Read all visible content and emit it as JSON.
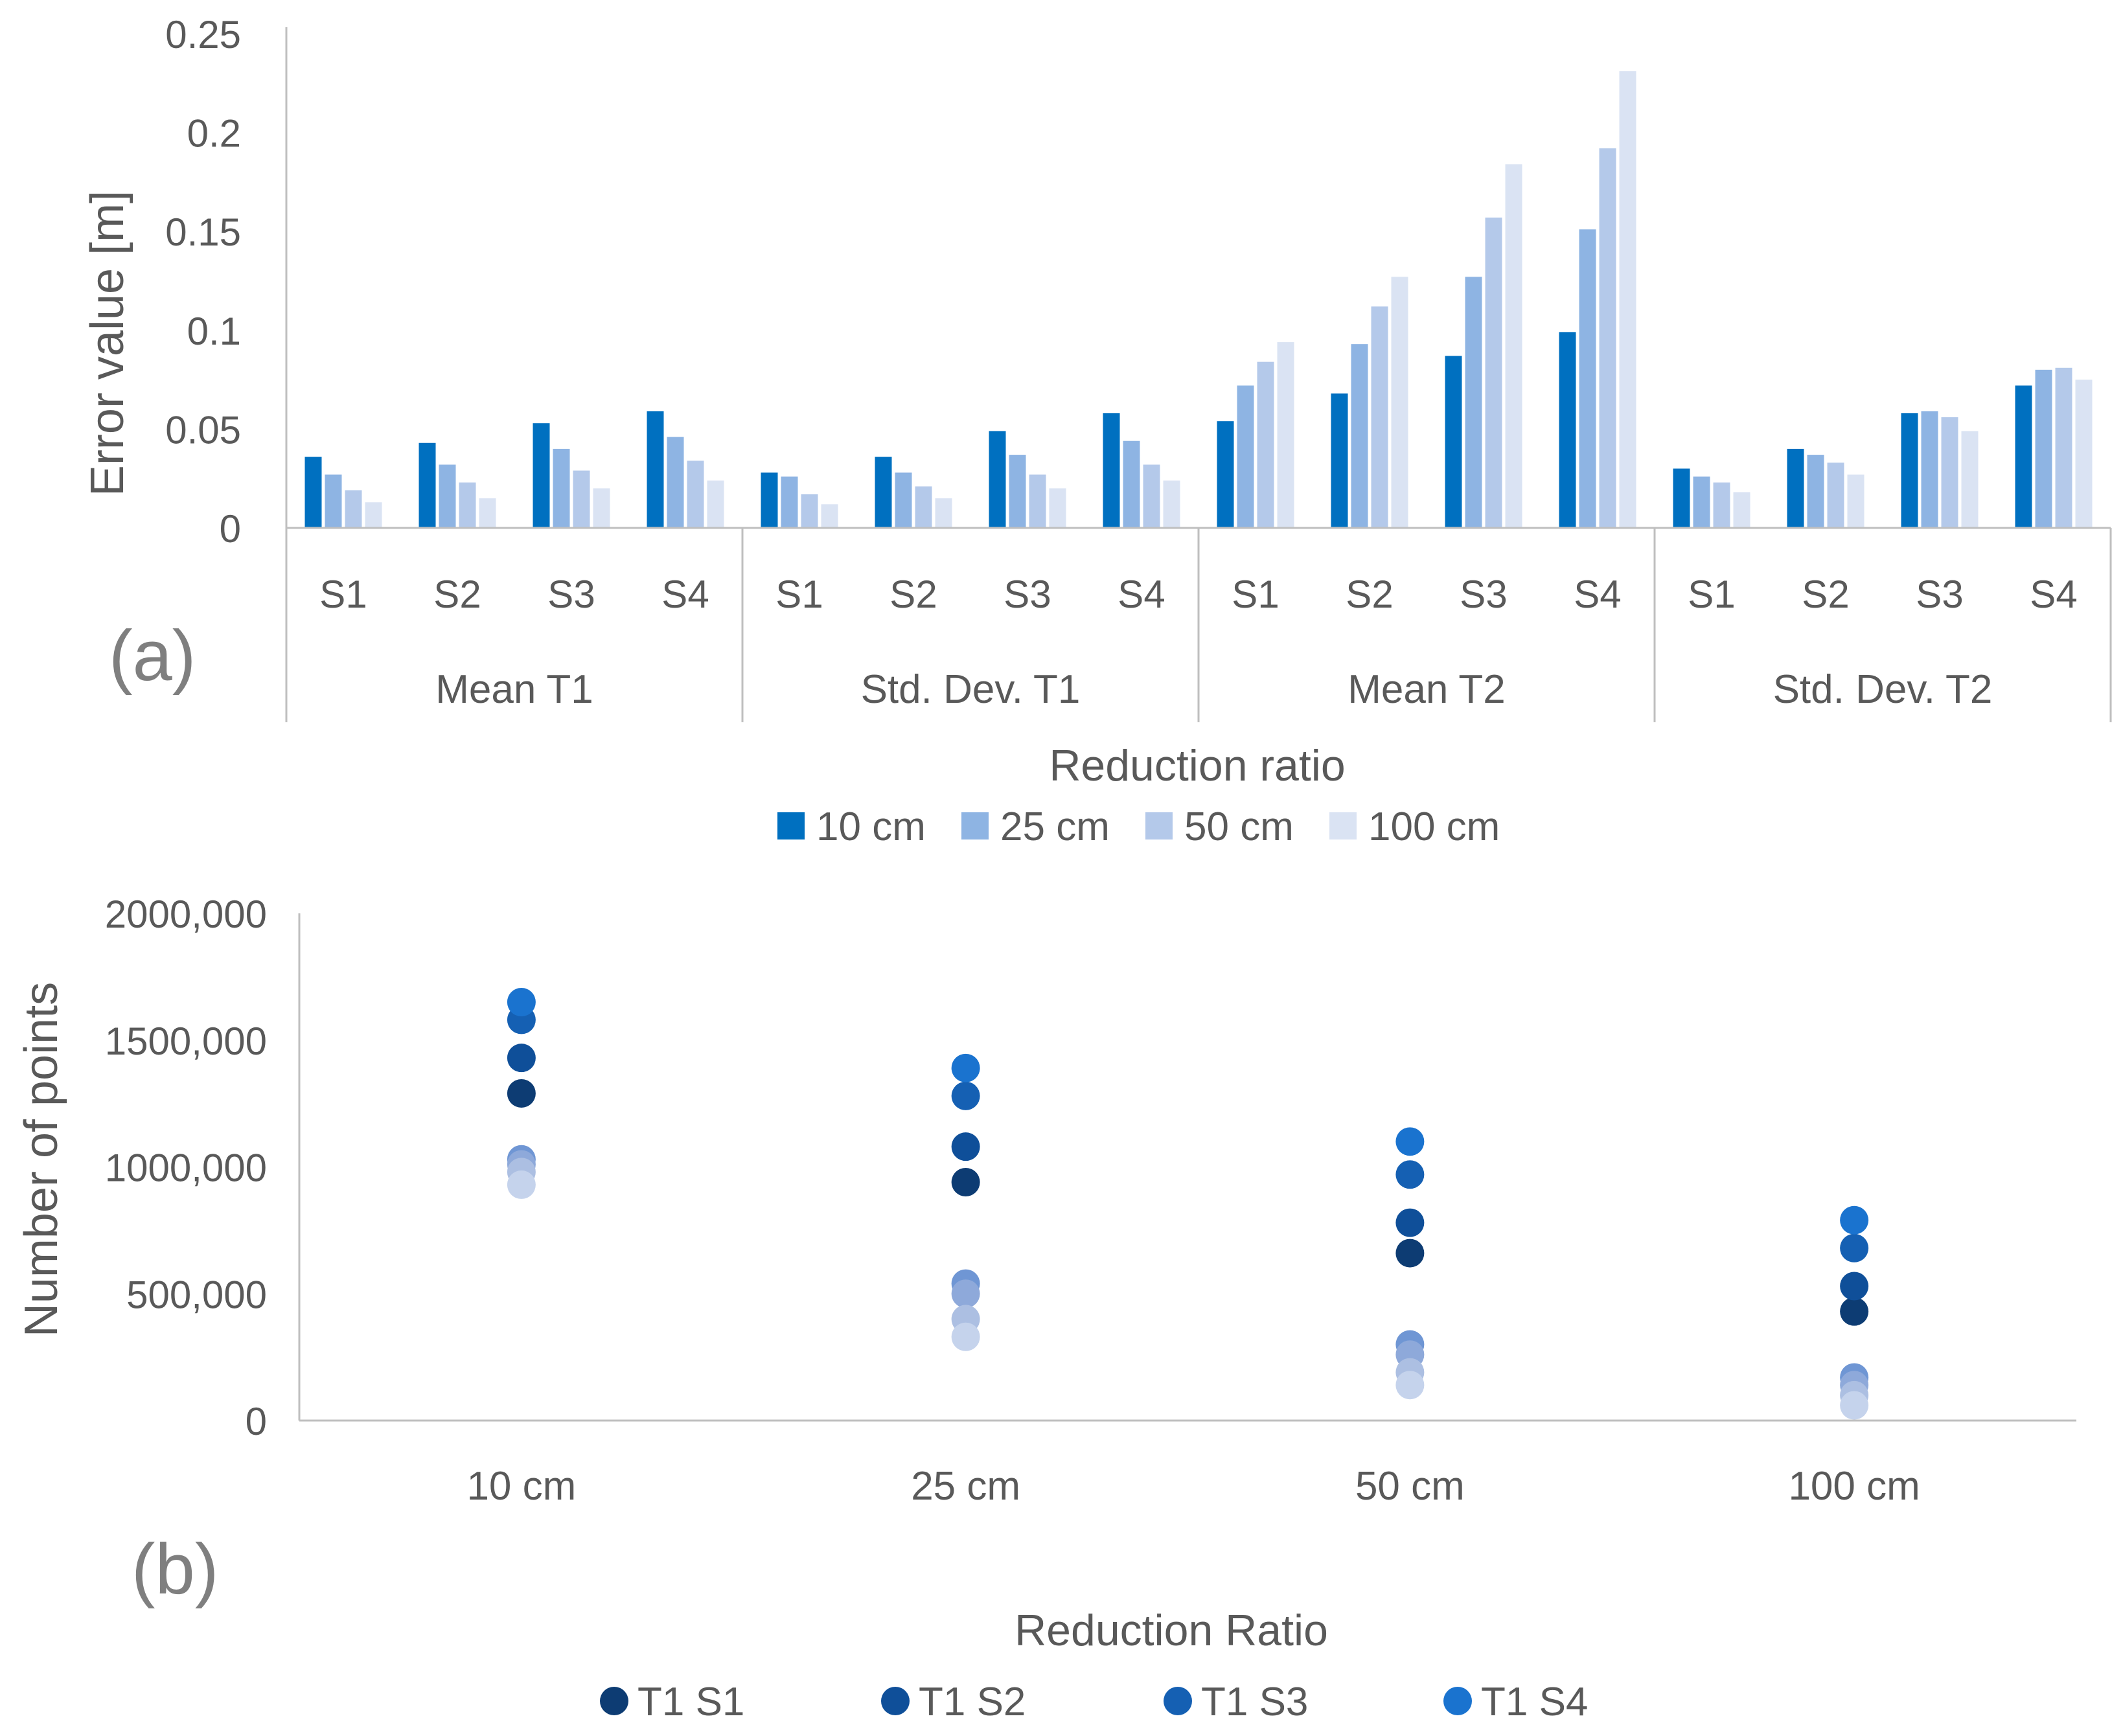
{
  "colors": {
    "bar_series": [
      "#0070c0",
      "#8eb4e3",
      "#b4c9ea",
      "#dae3f3"
    ],
    "scatter_series": [
      "#0d3c73",
      "#0f4f99",
      "#1560b3",
      "#1a73cf"
    ],
    "scatter_extra": [
      "#6f96d4",
      "#8ea9da",
      "#acbfe2",
      "#c5d3ec"
    ],
    "axis": "#bfbfbf",
    "text": "#595959"
  },
  "chart_data": [
    {
      "id": "a",
      "type": "bar",
      "panel_label": "(a)",
      "xlabel": "Reduction ratio",
      "ylabel": "Error value [m]",
      "ylim": [
        0,
        0.25
      ],
      "yticks": [
        0,
        0.05,
        0.1,
        0.15,
        0.2,
        0.25
      ],
      "ytick_labels": [
        "0",
        "0.05",
        "0.1",
        "0.15",
        "0.2",
        "0.25"
      ],
      "groups": [
        "Mean T1",
        "Std. Dev. T1",
        "Mean T2",
        "Std. Dev. T2"
      ],
      "categories": [
        "S1",
        "S2",
        "S3",
        "S4"
      ],
      "legend_position": "bottom",
      "series": [
        {
          "name": "10 cm",
          "values": [
            [
              0.036,
              0.043,
              0.053,
              0.059
            ],
            [
              0.028,
              0.036,
              0.049,
              0.058
            ],
            [
              0.054,
              0.068,
              0.087,
              0.099
            ],
            [
              0.03,
              0.04,
              0.058,
              0.072
            ]
          ]
        },
        {
          "name": "25 cm",
          "values": [
            [
              0.027,
              0.032,
              0.04,
              0.046
            ],
            [
              0.026,
              0.028,
              0.037,
              0.044
            ],
            [
              0.072,
              0.093,
              0.127,
              0.151
            ],
            [
              0.026,
              0.037,
              0.059,
              0.08
            ]
          ]
        },
        {
          "name": "50 cm",
          "values": [
            [
              0.019,
              0.023,
              0.029,
              0.034
            ],
            [
              0.017,
              0.021,
              0.027,
              0.032
            ],
            [
              0.084,
              0.112,
              0.157,
              0.192
            ],
            [
              0.023,
              0.033,
              0.056,
              0.081
            ]
          ]
        },
        {
          "name": "100 cm",
          "values": [
            [
              0.013,
              0.015,
              0.02,
              0.024
            ],
            [
              0.012,
              0.015,
              0.02,
              0.024
            ],
            [
              0.094,
              0.127,
              0.184,
              0.231
            ],
            [
              0.018,
              0.027,
              0.049,
              0.075
            ]
          ]
        }
      ]
    },
    {
      "id": "b",
      "type": "scatter",
      "panel_label": "(b)",
      "xlabel": "Reduction Ratio",
      "ylabel": "Number of points",
      "ylim": [
        0,
        2000000
      ],
      "yticks": [
        0,
        500000,
        1000000,
        1500000,
        2000000
      ],
      "ytick_labels": [
        "0",
        "500,000",
        "1000,000",
        "1500,000",
        "2000,000"
      ],
      "categories": [
        "10 cm",
        "25 cm",
        "50 cm",
        "100 cm"
      ],
      "legend_position": "bottom",
      "series": [
        {
          "name": "T1 S1",
          "values": [
            1290000,
            940000,
            660000,
            430000
          ]
        },
        {
          "name": "T1 S2",
          "values": [
            1430000,
            1080000,
            780000,
            530000
          ]
        },
        {
          "name": "T1 S3",
          "values": [
            1580000,
            1280000,
            970000,
            680000
          ]
        },
        {
          "name": "T1 S4",
          "values": [
            1650000,
            1390000,
            1100000,
            790000
          ]
        }
      ],
      "unlabeled_series": [
        {
          "values": [
            1030000,
            540000,
            300000,
            170000
          ]
        },
        {
          "values": [
            1010000,
            500000,
            260000,
            140000
          ]
        },
        {
          "values": [
            980000,
            400000,
            190000,
            100000
          ]
        },
        {
          "values": [
            930000,
            330000,
            140000,
            60000
          ]
        }
      ]
    }
  ]
}
